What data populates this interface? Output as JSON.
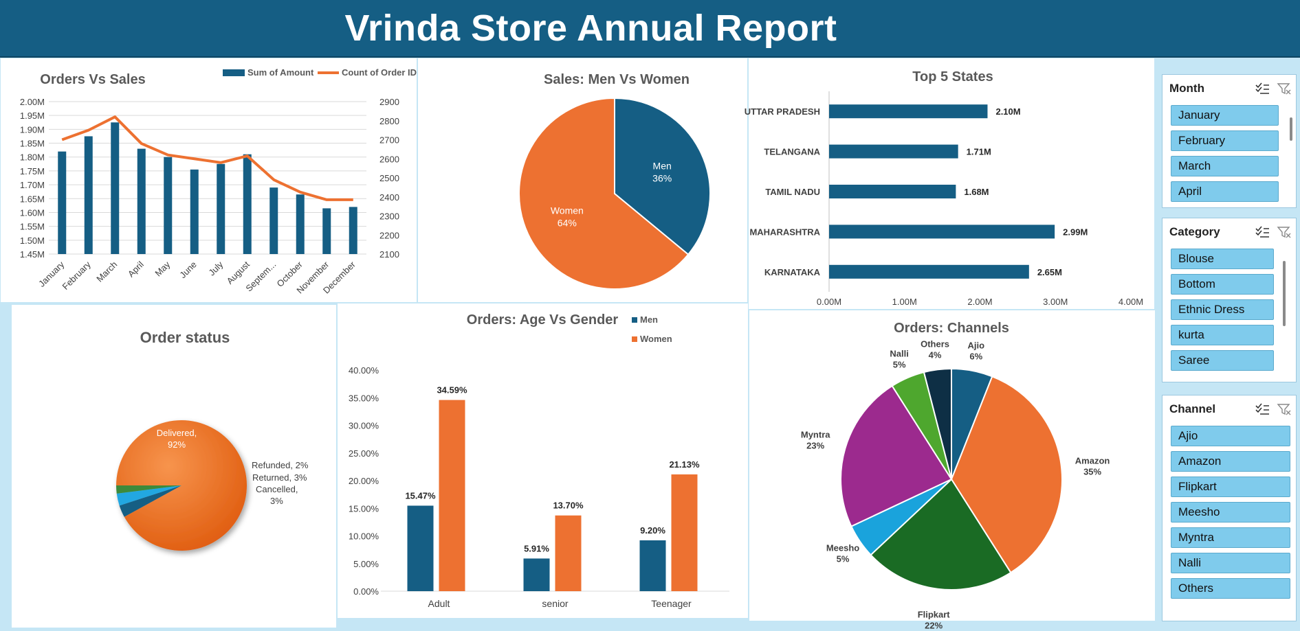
{
  "header": {
    "title": "Vrinda Store Annual Report"
  },
  "chart_data": [
    {
      "id": "orders-vs-sales",
      "type": "combo",
      "title": "Orders Vs Sales",
      "legend": {
        "placement": "top-right",
        "entries": [
          "Sum of Amount",
          "Count of Order ID"
        ]
      },
      "categories": [
        "January",
        "February",
        "March",
        "April",
        "May",
        "June",
        "July",
        "August",
        "Septem...",
        "October",
        "November",
        "December"
      ],
      "series": [
        {
          "name": "Sum of Amount",
          "type": "bar",
          "axis": "left",
          "color": "#155e84",
          "values": [
            1.82,
            1.875,
            1.925,
            1.83,
            1.8,
            1.755,
            1.775,
            1.81,
            1.69,
            1.665,
            1.615,
            1.62
          ]
        },
        {
          "name": "Count of Order ID",
          "type": "line",
          "axis": "right",
          "color": "#ed7131",
          "values": [
            2700,
            2750,
            2820,
            2680,
            2620,
            2600,
            2580,
            2615,
            2490,
            2425,
            2385,
            2385
          ]
        }
      ],
      "y_left": {
        "min": 1.45,
        "max": 2.0,
        "ticks": [
          "2.00M",
          "1.95M",
          "1.90M",
          "1.85M",
          "1.80M",
          "1.75M",
          "1.70M",
          "1.65M",
          "1.60M",
          "1.55M",
          "1.50M",
          "1.45M"
        ]
      },
      "y_right": {
        "min": 2100,
        "max": 2900,
        "ticks": [
          "2900",
          "2800",
          "2700",
          "2600",
          "2500",
          "2400",
          "2300",
          "2200",
          "2100"
        ]
      },
      "grid": true
    },
    {
      "id": "sales-men-women",
      "type": "pie",
      "title": "Sales: Men Vs Women",
      "slices": [
        {
          "name": "Men",
          "value": 36,
          "label": "36%",
          "color": "#155e84"
        },
        {
          "name": "Women",
          "value": 64,
          "label": "64%",
          "color": "#ed7131"
        }
      ]
    },
    {
      "id": "top-5-states",
      "type": "bar",
      "orientation": "horizontal",
      "title": "Top 5 States",
      "categories": [
        "UTTAR PRADESH",
        "TELANGANA",
        "TAMIL NADU",
        "MAHARASHTRA",
        "KARNATAKA"
      ],
      "values": [
        2.1,
        1.71,
        1.68,
        2.99,
        2.65
      ],
      "value_labels": [
        "2.10M",
        "1.71M",
        "1.68M",
        "2.99M",
        "2.65M"
      ],
      "xlim": [
        0,
        4
      ],
      "x_ticks": [
        "0.00M",
        "1.00M",
        "2.00M",
        "3.00M",
        "4.00M"
      ],
      "color": "#155e84"
    },
    {
      "id": "order-status",
      "type": "pie",
      "title": "Order status",
      "slices": [
        {
          "name": "Delivered",
          "value": 92,
          "label": "Delivered,",
          "pct": "92%",
          "color": "#ef7023"
        },
        {
          "name": "Cancelled",
          "value": 3,
          "label": "Cancelled,",
          "pct": "3%",
          "color": "#155e84"
        },
        {
          "name": "Returned",
          "value": 3,
          "label": "Returned, 3%",
          "color": "#21a7e1"
        },
        {
          "name": "Refunded",
          "value": 2,
          "label": "Refunded, 2%",
          "color": "#3c8a3a"
        }
      ]
    },
    {
      "id": "orders-age-gender",
      "type": "bar",
      "title": "Orders: Age Vs Gender",
      "legend": {
        "placement": "top-right",
        "entries": [
          "Men",
          "Women"
        ]
      },
      "categories": [
        "Adult",
        "senior",
        "Teenager"
      ],
      "series": [
        {
          "name": "Men",
          "color": "#155e84",
          "values": [
            15.47,
            5.91,
            9.2
          ],
          "labels": [
            "15.47%",
            "5.91%",
            "9.20%"
          ]
        },
        {
          "name": "Women",
          "color": "#ed7131",
          "values": [
            34.59,
            13.7,
            21.13
          ],
          "labels": [
            "34.59%",
            "13.70%",
            "21.13%"
          ]
        }
      ],
      "ylim": [
        0,
        40
      ],
      "y_ticks": [
        "40.00%",
        "35.00%",
        "30.00%",
        "25.00%",
        "20.00%",
        "15.00%",
        "10.00%",
        "5.00%",
        "0.00%"
      ]
    },
    {
      "id": "orders-channels",
      "type": "pie",
      "title": "Orders: Channels",
      "slices": [
        {
          "name": "Ajio",
          "value": 6,
          "pct": "6%",
          "color": "#155e84"
        },
        {
          "name": "Amazon",
          "value": 35,
          "pct": "35%",
          "color": "#ed7131"
        },
        {
          "name": "Flipkart",
          "value": 22,
          "pct": "22%",
          "color": "#1a6b24"
        },
        {
          "name": "Meesho",
          "value": 5,
          "pct": "5%",
          "color": "#1aa3dc"
        },
        {
          "name": "Myntra",
          "value": 23,
          "pct": "23%",
          "color": "#9c2a8e"
        },
        {
          "name": "Nalli",
          "value": 5,
          "pct": "5%",
          "color": "#4ea72e"
        },
        {
          "name": "Others",
          "value": 4,
          "pct": "4%",
          "color": "#0e2f45"
        }
      ]
    }
  ],
  "slicers": {
    "month": {
      "title": "Month",
      "items": [
        "January",
        "February",
        "March",
        "April"
      ]
    },
    "category": {
      "title": "Category",
      "items": [
        "Blouse",
        "Bottom",
        "Ethnic Dress",
        "kurta",
        "Saree"
      ]
    },
    "channel": {
      "title": "Channel",
      "items": [
        "Ajio",
        "Amazon",
        "Flipkart",
        "Meesho",
        "Myntra",
        "Nalli",
        "Others"
      ]
    }
  },
  "colors": {
    "header": "#155e84",
    "men": "#155e84",
    "women": "#ed7131",
    "slicer_item": "#7fcbec"
  },
  "icons": {
    "multi_select": "multi-select-icon",
    "clear_filter": "clear-filter-icon"
  }
}
